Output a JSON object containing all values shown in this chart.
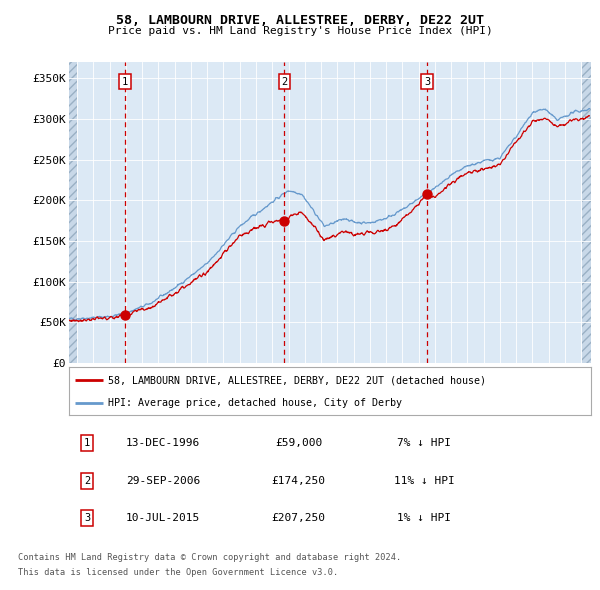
{
  "title": "58, LAMBOURN DRIVE, ALLESTREE, DERBY, DE22 2UT",
  "subtitle": "Price paid vs. HM Land Registry's House Price Index (HPI)",
  "legend_line1": "58, LAMBOURN DRIVE, ALLESTREE, DERBY, DE22 2UT (detached house)",
  "legend_line2": "HPI: Average price, detached house, City of Derby",
  "footer1": "Contains HM Land Registry data © Crown copyright and database right 2024.",
  "footer2": "This data is licensed under the Open Government Licence v3.0.",
  "sale_color": "#cc0000",
  "hpi_color": "#6699cc",
  "bg_color": "#dce9f5",
  "hatch_color": "#c8d8e8",
  "grid_color": "#ffffff",
  "vline_color": "#cc0000",
  "sale_dates_decimal": [
    1996.95,
    2006.745,
    2015.52
  ],
  "sale_prices": [
    59000,
    174250,
    207250
  ],
  "sale_labels": [
    "1",
    "2",
    "3"
  ],
  "sale_info": [
    {
      "num": "1",
      "date": "13-DEC-1996",
      "price": "£59,000",
      "hpi": "7% ↓ HPI"
    },
    {
      "num": "2",
      "date": "29-SEP-2006",
      "price": "£174,250",
      "hpi": "11% ↓ HPI"
    },
    {
      "num": "3",
      "date": "10-JUL-2015",
      "price": "£207,250",
      "hpi": "1% ↓ HPI"
    }
  ],
  "ylim": [
    0,
    370000
  ],
  "xlim_start": 1993.5,
  "xlim_end": 2025.6,
  "yticks": [
    0,
    50000,
    100000,
    150000,
    200000,
    250000,
    300000,
    350000
  ],
  "ytick_labels": [
    "£0",
    "£50K",
    "£100K",
    "£150K",
    "£200K",
    "£250K",
    "£300K",
    "£350K"
  ],
  "hpi_anchors": [
    [
      1993.5,
      54000
    ],
    [
      1994.5,
      55000
    ],
    [
      1996.0,
      57000
    ],
    [
      1997.0,
      61000
    ],
    [
      1998.5,
      73000
    ],
    [
      2000.0,
      92000
    ],
    [
      2002.0,
      122000
    ],
    [
      2004.0,
      168000
    ],
    [
      2006.0,
      198000
    ],
    [
      2007.0,
      212000
    ],
    [
      2007.8,
      208000
    ],
    [
      2008.5,
      188000
    ],
    [
      2009.2,
      168000
    ],
    [
      2009.8,
      172000
    ],
    [
      2010.5,
      178000
    ],
    [
      2011.0,
      173000
    ],
    [
      2012.0,
      172000
    ],
    [
      2013.0,
      178000
    ],
    [
      2014.0,
      188000
    ],
    [
      2015.0,
      202000
    ],
    [
      2016.0,
      215000
    ],
    [
      2017.0,
      230000
    ],
    [
      2018.0,
      242000
    ],
    [
      2019.0,
      248000
    ],
    [
      2020.0,
      252000
    ],
    [
      2021.0,
      278000
    ],
    [
      2022.0,
      308000
    ],
    [
      2022.8,
      312000
    ],
    [
      2023.5,
      298000
    ],
    [
      2024.5,
      308000
    ],
    [
      2025.5,
      312000
    ]
  ],
  "price_anchors": [
    [
      1993.5,
      52000
    ],
    [
      1994.5,
      53000
    ],
    [
      1996.0,
      55000
    ],
    [
      1996.95,
      59000
    ],
    [
      1997.5,
      62000
    ],
    [
      1998.5,
      68000
    ],
    [
      2000.0,
      86000
    ],
    [
      2002.0,
      112000
    ],
    [
      2004.0,
      156000
    ],
    [
      2005.5,
      170000
    ],
    [
      2006.0,
      174000
    ],
    [
      2006.745,
      174250
    ],
    [
      2007.2,
      182000
    ],
    [
      2007.8,
      185000
    ],
    [
      2008.5,
      170000
    ],
    [
      2009.2,
      150000
    ],
    [
      2009.8,
      156000
    ],
    [
      2010.5,
      162000
    ],
    [
      2011.0,
      158000
    ],
    [
      2012.0,
      160000
    ],
    [
      2013.0,
      163000
    ],
    [
      2014.0,
      175000
    ],
    [
      2015.0,
      195000
    ],
    [
      2015.52,
      207250
    ],
    [
      2016.0,
      204000
    ],
    [
      2017.0,
      222000
    ],
    [
      2018.0,
      233000
    ],
    [
      2019.0,
      238000
    ],
    [
      2020.0,
      244000
    ],
    [
      2021.0,
      272000
    ],
    [
      2022.0,
      296000
    ],
    [
      2022.8,
      300000
    ],
    [
      2023.5,
      290000
    ],
    [
      2024.5,
      298000
    ],
    [
      2025.5,
      302000
    ]
  ]
}
